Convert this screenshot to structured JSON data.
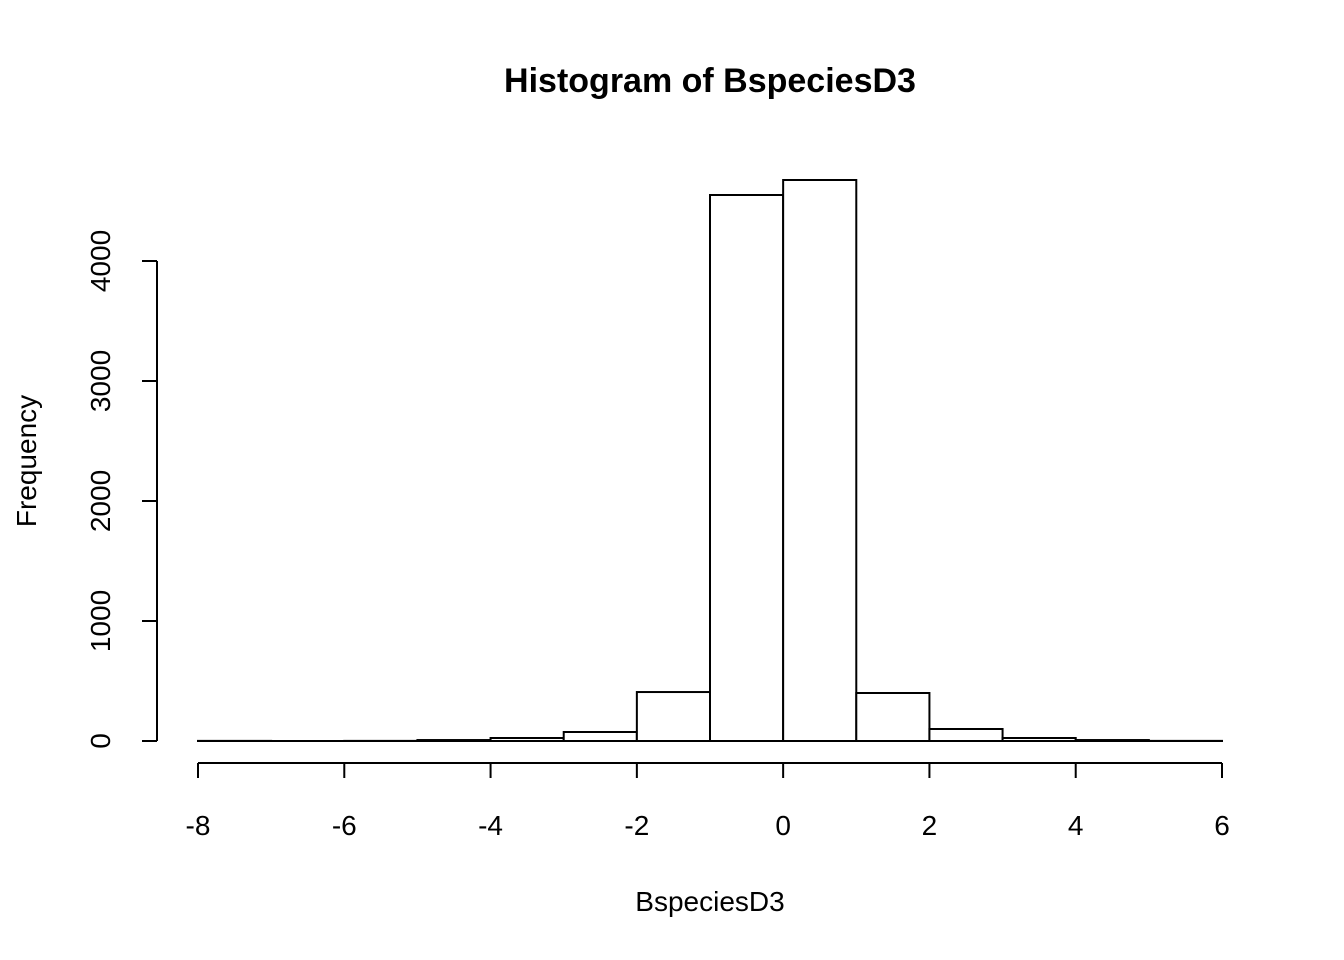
{
  "chart_data": {
    "type": "histogram",
    "title": "Histogram of BspeciesD3",
    "xlabel": "BspeciesD3",
    "ylabel": "Frequency",
    "bins": [
      -8,
      -7,
      -6,
      -5,
      -4,
      -3,
      -2,
      -1,
      0,
      1,
      2,
      3,
      4,
      5,
      6
    ],
    "counts": [
      1,
      0,
      1,
      8,
      25,
      75,
      408,
      4550,
      4675,
      400,
      100,
      25,
      8,
      1
    ],
    "color": "#ffffff",
    "edgecolor": "#000000",
    "xlim": [
      -8,
      6
    ],
    "xticks": [
      -8,
      -6,
      -4,
      -2,
      0,
      2,
      4,
      6
    ],
    "ylim": [
      0,
      4800
    ],
    "yticks": [
      0,
      1000,
      2000,
      3000,
      4000
    ]
  }
}
